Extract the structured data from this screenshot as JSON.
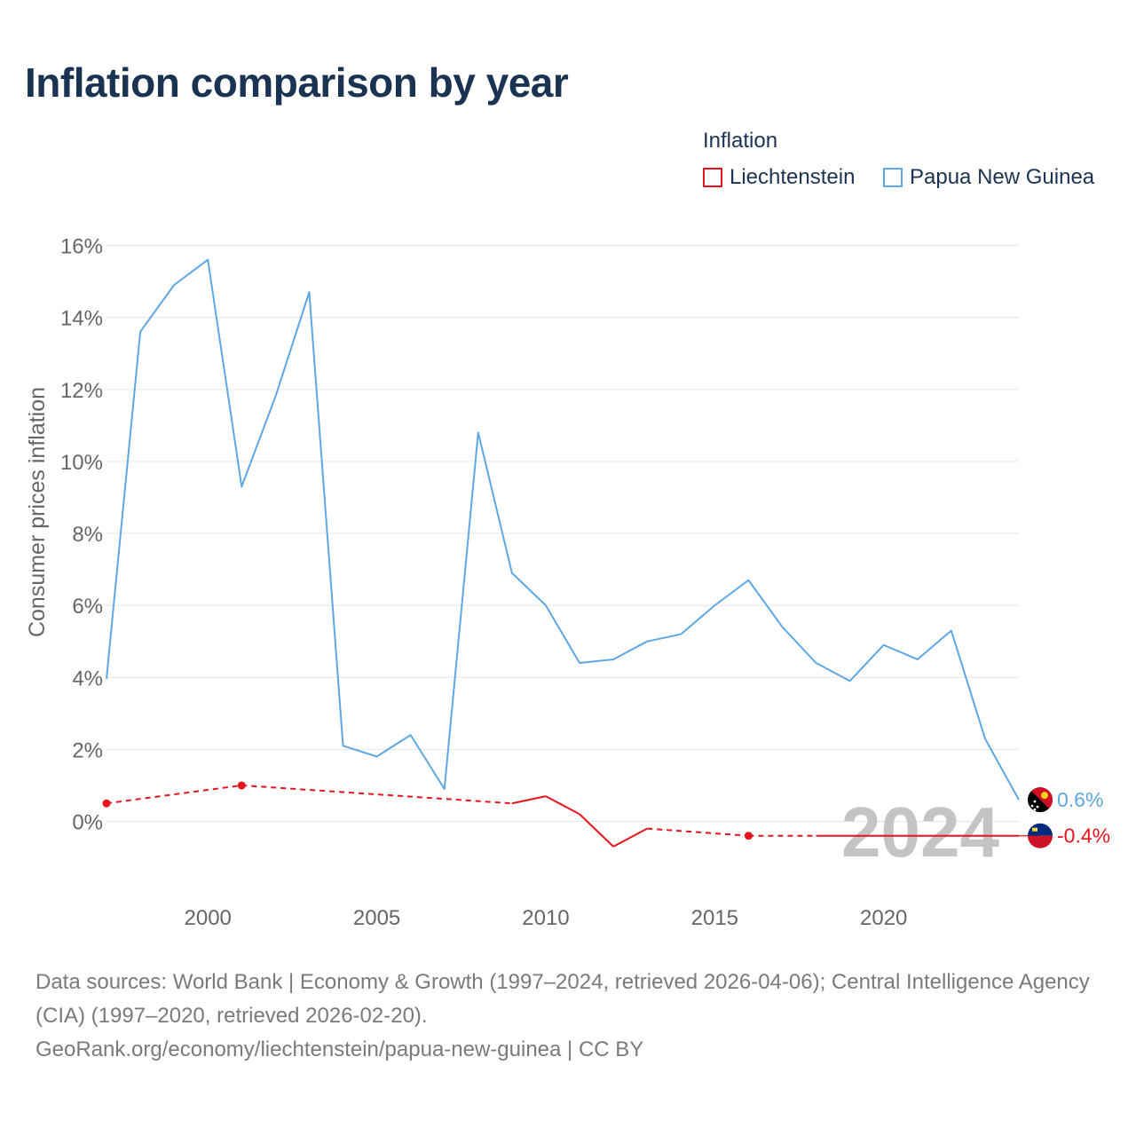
{
  "title": "Inflation comparison by year",
  "legend": {
    "title": "Inflation",
    "items": [
      {
        "label": "Liechtenstein",
        "color": "#e8141c"
      },
      {
        "label": "Papua New Guinea",
        "color": "#5ea7e4"
      }
    ]
  },
  "chart_data": {
    "type": "line",
    "title": "Inflation comparison by year",
    "xlabel": "",
    "ylabel": "Consumer prices inflation",
    "xlim": [
      1997,
      2024
    ],
    "ylim": [
      -2,
      16
    ],
    "x_ticks": [
      2000,
      2005,
      2010,
      2015,
      2020
    ],
    "y_ticks": [
      0,
      2,
      4,
      6,
      8,
      10,
      12,
      14,
      16
    ],
    "y_tick_labels": [
      "0%",
      "2%",
      "4%",
      "6%",
      "8%",
      "10%",
      "12%",
      "14%",
      "16%"
    ],
    "grid": true,
    "year_watermark": "2024",
    "series": [
      {
        "name": "Papua New Guinea",
        "color": "#5ea7e4",
        "end_label": "0.6%",
        "flag": "papua-new-guinea-flag-icon",
        "points": [
          [
            1997,
            3.96
          ],
          [
            1998,
            13.6
          ],
          [
            1999,
            14.9
          ],
          [
            2000,
            15.6
          ],
          [
            2001,
            9.3
          ],
          [
            2002,
            11.8
          ],
          [
            2003,
            14.7
          ],
          [
            2004,
            2.1
          ],
          [
            2005,
            1.8
          ],
          [
            2006,
            2.4
          ],
          [
            2007,
            0.9
          ],
          [
            2008,
            10.8
          ],
          [
            2009,
            6.9
          ],
          [
            2010,
            6.0
          ],
          [
            2011,
            4.4
          ],
          [
            2012,
            4.5
          ],
          [
            2013,
            5.0
          ],
          [
            2014,
            5.2
          ],
          [
            2015,
            6.0
          ],
          [
            2016,
            6.7
          ],
          [
            2017,
            5.4
          ],
          [
            2018,
            4.4
          ],
          [
            2019,
            3.9
          ],
          [
            2020,
            4.9
          ],
          [
            2021,
            4.5
          ],
          [
            2022,
            5.3
          ],
          [
            2023,
            2.3
          ],
          [
            2024,
            0.6
          ]
        ]
      },
      {
        "name": "Liechtenstein",
        "color": "#e8141c",
        "end_label": "-0.4%",
        "flag": "liechtenstein-flag-icon",
        "points": [
          [
            1997,
            0.5
          ],
          [
            2001,
            1.0
          ],
          [
            2009,
            0.5
          ],
          [
            2010,
            0.7
          ],
          [
            2011,
            0.2
          ],
          [
            2012,
            -0.7
          ],
          [
            2013,
            -0.2
          ],
          [
            2016,
            -0.4
          ],
          [
            2018,
            -0.4
          ],
          [
            2019,
            -0.4
          ],
          [
            2020,
            -0.4
          ],
          [
            2021,
            -0.4
          ],
          [
            2022,
            -0.4
          ],
          [
            2023,
            -0.4
          ],
          [
            2024,
            -0.4
          ]
        ],
        "marked_points": [
          [
            1997,
            0.5
          ],
          [
            2001,
            1.0
          ],
          [
            2016,
            -0.4
          ]
        ],
        "dashed_segments": [
          [
            1997,
            2001
          ],
          [
            2001,
            2009
          ],
          [
            2013,
            2016
          ],
          [
            2016,
            2018
          ]
        ]
      }
    ]
  },
  "footer": {
    "sources": "Data sources: World Bank | Economy & Growth (1997–2024, retrieved 2026-04-06); Central Intelligence Agency (CIA) (1997–2020, retrieved 2026-02-20).",
    "url": "GeoRank.org/economy/liechtenstein/papua-new-guinea | CC BY"
  }
}
